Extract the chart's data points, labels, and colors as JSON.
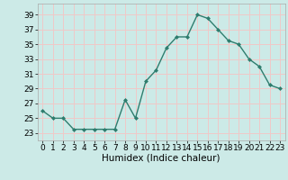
{
  "x": [
    0,
    1,
    2,
    3,
    4,
    5,
    6,
    7,
    8,
    9,
    10,
    11,
    12,
    13,
    14,
    15,
    16,
    17,
    18,
    19,
    20,
    21,
    22,
    23
  ],
  "y": [
    26,
    25,
    25,
    23.5,
    23.5,
    23.5,
    23.5,
    23.5,
    27.5,
    25,
    30,
    31.5,
    34.5,
    36,
    36,
    39,
    38.5,
    37,
    35.5,
    35,
    33,
    32,
    29.5,
    29
  ],
  "line_color": "#2e7d6e",
  "marker": "D",
  "markersize": 2.0,
  "linewidth": 1.0,
  "xlabel": "Humidex (Indice chaleur)",
  "xlim": [
    -0.5,
    23.5
  ],
  "ylim": [
    22,
    40.5
  ],
  "yticks": [
    23,
    25,
    27,
    29,
    31,
    33,
    35,
    37,
    39
  ],
  "xtick_labels": [
    "0",
    "1",
    "2",
    "3",
    "4",
    "5",
    "6",
    "7",
    "8",
    "9",
    "10",
    "11",
    "12",
    "13",
    "14",
    "15",
    "16",
    "17",
    "18",
    "19",
    "20",
    "21",
    "22",
    "23"
  ],
  "bg_color": "#cceae7",
  "grid_color": "#f0c8c8",
  "xlabel_fontsize": 7.5,
  "tick_fontsize": 6.5
}
